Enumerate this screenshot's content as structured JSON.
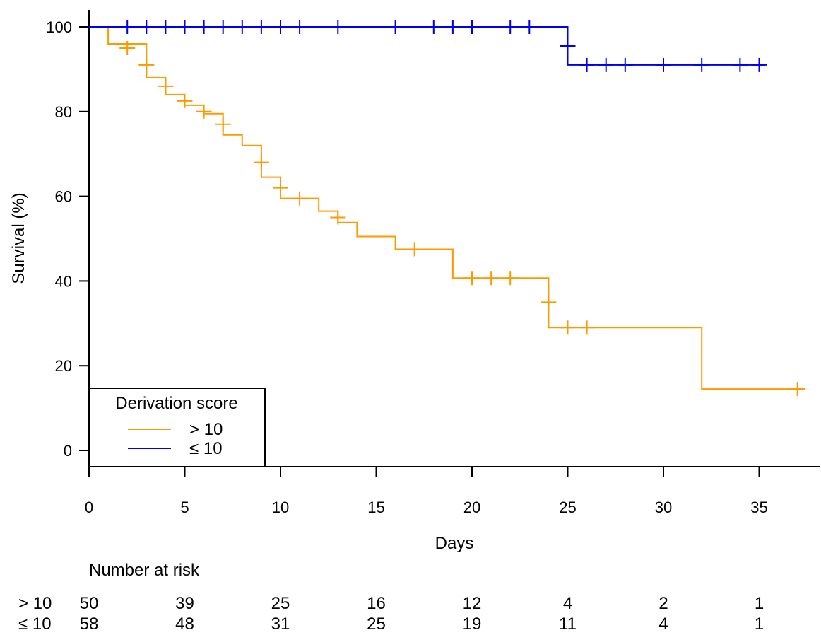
{
  "chart_data": {
    "type": "kaplan-meier",
    "title": "",
    "xlabel": "Days",
    "ylabel": "Survival (%)",
    "xlim": [
      0,
      38
    ],
    "ylim": [
      -4,
      104
    ],
    "xticks": [
      0,
      5,
      10,
      15,
      20,
      25,
      30,
      35
    ],
    "yticks": [
      0,
      20,
      40,
      60,
      80,
      100
    ],
    "grid": false,
    "legend": {
      "title": "Derivation score",
      "position": "bottom-left",
      "entries": [
        {
          "label": "> 10",
          "series_index": 0
        },
        {
          "label": "≤ 10",
          "series_index": 1
        }
      ]
    },
    "series": [
      {
        "name": "> 10",
        "color": "#ff9900",
        "steps": [
          [
            0,
            100
          ],
          [
            1,
            96
          ],
          [
            3,
            94
          ],
          [
            3,
            91
          ],
          [
            3,
            88
          ],
          [
            4,
            86
          ],
          [
            4,
            84
          ],
          [
            5,
            83
          ],
          [
            5,
            81.5
          ],
          [
            6,
            80
          ],
          [
            6,
            79.5
          ],
          [
            7,
            77
          ],
          [
            7,
            74.5
          ],
          [
            8,
            72
          ],
          [
            9,
            68
          ],
          [
            9,
            64.5
          ],
          [
            10,
            62
          ],
          [
            10,
            59.5
          ],
          [
            12,
            56.5
          ],
          [
            13,
            55
          ],
          [
            13,
            53.8
          ],
          [
            14,
            50.5
          ],
          [
            16,
            47.5
          ],
          [
            19,
            40.7
          ],
          [
            24,
            35
          ],
          [
            24,
            29
          ],
          [
            32,
            14.5
          ]
        ],
        "end_x": 37.4,
        "censored": [
          [
            2,
            95
          ],
          [
            3,
            91
          ],
          [
            4,
            86
          ],
          [
            5,
            82.5
          ],
          [
            6,
            80
          ],
          [
            7,
            77
          ],
          [
            9,
            68
          ],
          [
            10,
            62
          ],
          [
            11,
            59.5
          ],
          [
            13,
            55
          ],
          [
            17,
            47.5
          ],
          [
            20,
            40.7
          ],
          [
            21,
            40.7
          ],
          [
            22,
            40.7
          ],
          [
            24,
            35
          ],
          [
            25,
            29
          ],
          [
            26,
            29
          ],
          [
            37,
            14.5
          ]
        ]
      },
      {
        "name": "≤ 10",
        "color": "#0000ee",
        "steps": [
          [
            0,
            100
          ],
          [
            25,
            95.5
          ],
          [
            25,
            91
          ]
        ],
        "end_x": 35.3,
        "censored": [
          [
            2,
            100
          ],
          [
            3,
            100
          ],
          [
            4,
            100
          ],
          [
            5,
            100
          ],
          [
            6,
            100
          ],
          [
            7,
            100
          ],
          [
            8,
            100
          ],
          [
            9,
            100
          ],
          [
            10,
            100
          ],
          [
            11,
            100
          ],
          [
            13,
            100
          ],
          [
            16,
            100
          ],
          [
            18,
            100
          ],
          [
            19,
            100
          ],
          [
            20,
            100
          ],
          [
            22,
            100
          ],
          [
            23,
            100
          ],
          [
            25,
            95.5
          ],
          [
            26,
            91
          ],
          [
            27,
            91
          ],
          [
            28,
            91
          ],
          [
            30,
            91
          ],
          [
            32,
            91
          ],
          [
            34,
            91
          ],
          [
            35,
            91
          ]
        ]
      }
    ],
    "risk_table": {
      "title": "Number at risk",
      "times": [
        0,
        5,
        10,
        15,
        20,
        25,
        30,
        35
      ],
      "rows": [
        {
          "label": "> 10",
          "values": [
            50,
            39,
            25,
            16,
            12,
            4,
            2,
            1
          ]
        },
        {
          "label": "≤ 10",
          "values": [
            58,
            48,
            31,
            25,
            19,
            11,
            4,
            1
          ]
        }
      ]
    }
  }
}
